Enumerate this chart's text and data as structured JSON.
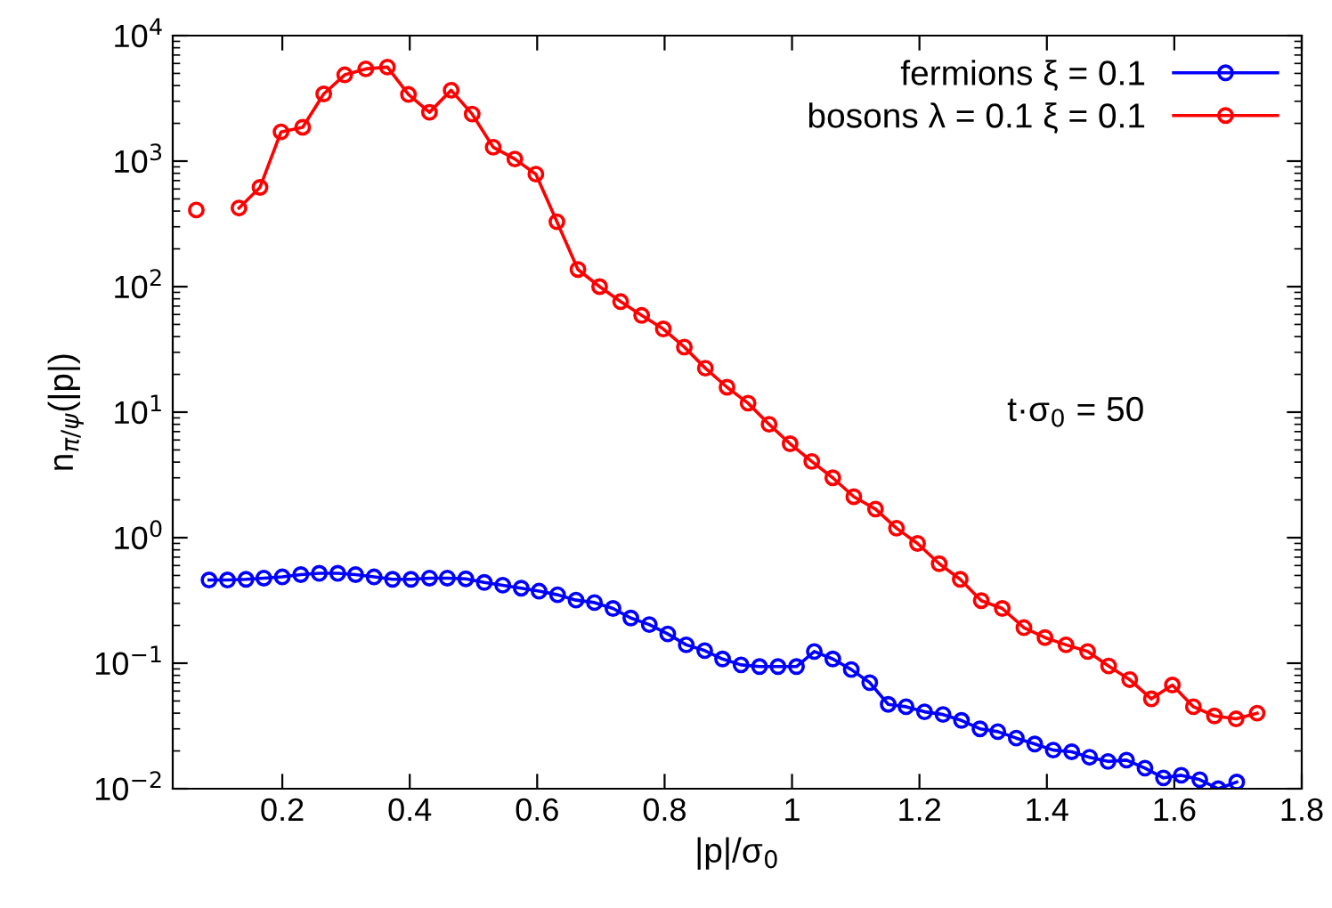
{
  "chart_data": {
    "type": "line",
    "xlabel": "|p|/σ$_{0}$",
    "ylabel": "n$_{π/ψ}$(|p|)",
    "annotations": [
      "t·σ$_{0}$ = 50"
    ],
    "log": "y",
    "xlim": [
      0.028,
      1.8
    ],
    "xticks": [
      0.2,
      0.4,
      0.6,
      0.8,
      1,
      1.2,
      1.4,
      1.6,
      1.8
    ],
    "ylim": [
      0.01,
      10000
    ],
    "yticks": [
      {
        "value": 0.01,
        "label": "10$^{−2}$"
      },
      {
        "value": 0.1,
        "label": "10$^{−1}$"
      },
      {
        "value": 1,
        "label": "10$^{0}$"
      },
      {
        "value": 10,
        "label": "10$^{1}$"
      },
      {
        "value": 100,
        "label": "10$^{2}$"
      },
      {
        "value": 1000,
        "label": "10$^{3}$"
      },
      {
        "value": 10000,
        "label": "10$^{4}$"
      }
    ],
    "grid": false,
    "legend": "top right",
    "marker": "circle",
    "line_style": "solid",
    "series": [
      {
        "name": "fermions ξ = 0.1",
        "color": "#0000ff",
        "x": [
          0.085,
          0.114,
          0.143,
          0.171,
          0.2,
          0.229,
          0.258,
          0.287,
          0.315,
          0.344,
          0.373,
          0.402,
          0.431,
          0.459,
          0.488,
          0.517,
          0.546,
          0.575,
          0.603,
          0.632,
          0.661,
          0.69,
          0.719,
          0.747,
          0.776,
          0.805,
          0.834,
          0.863,
          0.891,
          0.92,
          0.949,
          0.978,
          1.007,
          1.035,
          1.064,
          1.093,
          1.122,
          1.151,
          1.179,
          1.208,
          1.237,
          1.266,
          1.295,
          1.323,
          1.352,
          1.381,
          1.41,
          1.439,
          1.467,
          1.496,
          1.525,
          1.554,
          1.583,
          1.611,
          1.64,
          1.669,
          1.698
        ],
        "values": [
          0.46,
          0.46,
          0.466,
          0.476,
          0.487,
          0.508,
          0.52,
          0.52,
          0.508,
          0.487,
          0.466,
          0.466,
          0.476,
          0.476,
          0.47,
          0.44,
          0.418,
          0.396,
          0.375,
          0.351,
          0.318,
          0.304,
          0.273,
          0.229,
          0.203,
          0.171,
          0.14,
          0.126,
          0.108,
          0.097,
          0.094,
          0.094,
          0.094,
          0.124,
          0.108,
          0.089,
          0.07,
          0.047,
          0.045,
          0.041,
          0.039,
          0.035,
          0.03,
          0.0285,
          0.0253,
          0.0227,
          0.0203,
          0.0197,
          0.0178,
          0.0165,
          0.0169,
          0.0146,
          0.0122,
          0.0128,
          0.0118,
          0.01,
          0.0113
        ]
      },
      {
        "name": "bosons λ = 0.1 ξ = 0.1",
        "color": "#ff0000",
        "x": [
          0.065,
          0.098,
          0.132,
          0.165,
          0.198,
          0.232,
          0.265,
          0.298,
          0.331,
          0.365,
          0.398,
          0.431,
          0.465,
          0.498,
          0.531,
          0.565,
          0.598,
          0.631,
          0.664,
          0.698,
          0.731,
          0.764,
          0.798,
          0.831,
          0.864,
          0.898,
          0.931,
          0.964,
          0.997,
          1.031,
          1.064,
          1.097,
          1.131,
          1.164,
          1.197,
          1.231,
          1.264,
          1.297,
          1.33,
          1.364,
          1.397,
          1.43,
          1.464,
          1.497,
          1.53,
          1.564,
          1.597,
          1.63,
          1.663,
          1.697,
          1.73
        ],
        "values": [
          408,
          null,
          423,
          618,
          1710,
          1860,
          3430,
          4870,
          5430,
          5610,
          3400,
          2450,
          3670,
          2370,
          1290,
          1040,
          787,
          329,
          137,
          100,
          76,
          59,
          46,
          33,
          22.4,
          15.8,
          11.8,
          8.0,
          5.6,
          4.05,
          3.0,
          2.12,
          1.69,
          1.19,
          0.9,
          0.62,
          0.466,
          0.315,
          0.273,
          0.192,
          0.16,
          0.14,
          0.124,
          0.095,
          0.074,
          0.052,
          0.067,
          0.045,
          0.038,
          0.036,
          0.04
        ]
      }
    ]
  }
}
